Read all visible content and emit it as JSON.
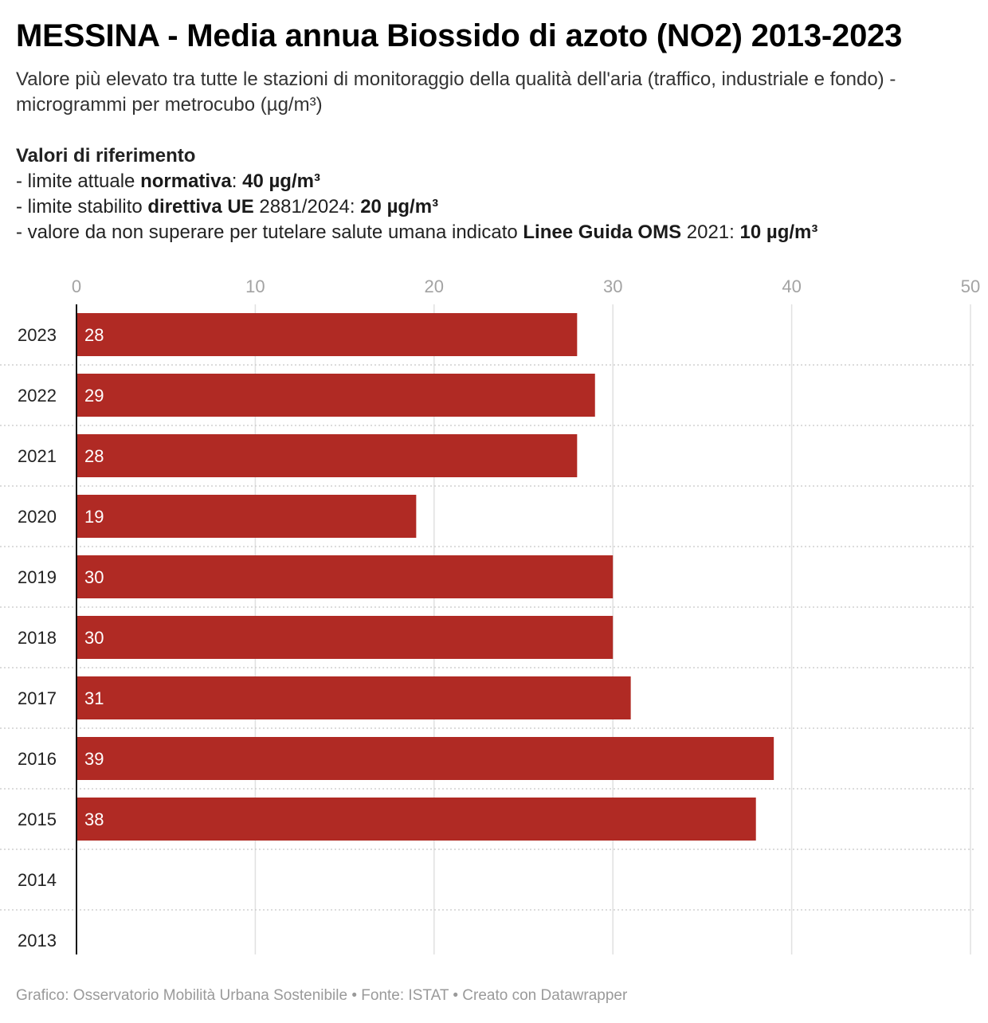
{
  "title": "MESSINA - Media annua Biossido di azoto (NO2) 2013-2023",
  "subtitle": "Valore più elevato tra tutte le stazioni di monitoraggio della qualità dell'aria (traffico, industriale e fondo) - microgrammi per metrocubo (µg/m³)",
  "references": {
    "heading": "Valori di riferimento",
    "line1": {
      "prefix": "- limite attuale ",
      "bold1": "normativa",
      "mid": ": ",
      "bold2": "40 µg/m³"
    },
    "line2": {
      "prefix": "- limite stabilito ",
      "bold1": "direttiva UE",
      "mid": " 2881/2024: ",
      "bold2": "20 µg/m³"
    },
    "line3": {
      "prefix": "- valore da non superare per tutelare salute umana indicato ",
      "bold1": "Linee Guida OMS",
      "mid": " 2021: ",
      "bold2": "10 µg/m³"
    }
  },
  "footer": "Grafico: Osservatorio Mobilità Urbana Sostenibile • Fonte: ISTAT • Creato con Datawrapper",
  "chart_data": {
    "type": "bar",
    "orientation": "horizontal",
    "categories": [
      "2023",
      "2022",
      "2021",
      "2020",
      "2019",
      "2018",
      "2017",
      "2016",
      "2015",
      "2014",
      "2013"
    ],
    "values": [
      28,
      29,
      28,
      19,
      30,
      30,
      31,
      39,
      38,
      null,
      null
    ],
    "xlim": [
      0,
      50
    ],
    "xticks": [
      0,
      10,
      20,
      30,
      40,
      50
    ],
    "grid": true,
    "bar_color": "#b02a24",
    "label_color": "#ffffff"
  }
}
